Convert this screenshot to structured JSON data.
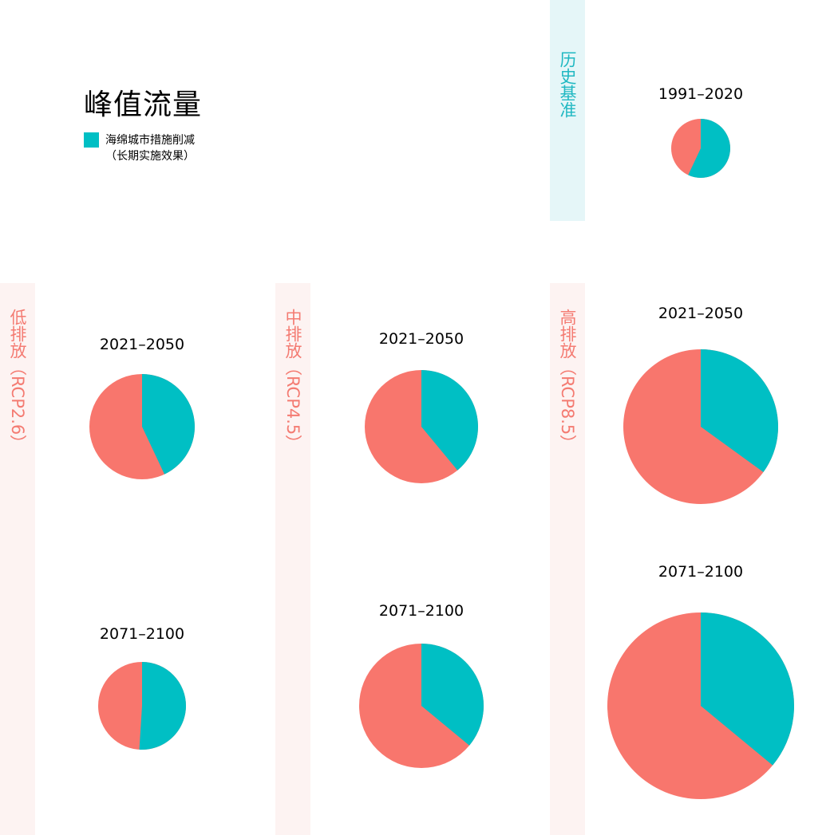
{
  "title": "峰值流量",
  "legend": {
    "color": "#00bfc4",
    "line1": "海绵城市措施削减",
    "line2": "（长期实施效果）"
  },
  "scenarios": {
    "historical": "历史基准",
    "low": "低排放（RCP2.6）",
    "mid": "中排放（RCP4.5）",
    "high": "高排放（RCP8.5）"
  },
  "colors": {
    "reduction": "#00bfc4",
    "remainder": "#f8766d",
    "historical_text": "#20b8c2",
    "scenario_text": "#f47b72"
  },
  "chart_data": {
    "type": "pie",
    "title": "峰值流量",
    "legend": [
      "海绵城市措施削减（长期实施效果）"
    ],
    "pies": [
      {
        "scenario": "历史基准",
        "period": "1991–2020",
        "reduction_share": 0.57
      },
      {
        "scenario": "低排放（RCP2.6）",
        "period": "2021–2050",
        "reduction_share": 0.43
      },
      {
        "scenario": "低排放（RCP2.6）",
        "period": "2071–2100",
        "reduction_share": 0.51
      },
      {
        "scenario": "中排放（RCP4.5）",
        "period": "2021–2050",
        "reduction_share": 0.39
      },
      {
        "scenario": "中排放（RCP4.5）",
        "period": "2071–2100",
        "reduction_share": 0.36
      },
      {
        "scenario": "高排放（RCP8.5）",
        "period": "2021–2050",
        "reduction_share": 0.35
      },
      {
        "scenario": "高排放（RCP8.5）",
        "period": "2071–2100",
        "reduction_share": 0.36
      }
    ]
  }
}
